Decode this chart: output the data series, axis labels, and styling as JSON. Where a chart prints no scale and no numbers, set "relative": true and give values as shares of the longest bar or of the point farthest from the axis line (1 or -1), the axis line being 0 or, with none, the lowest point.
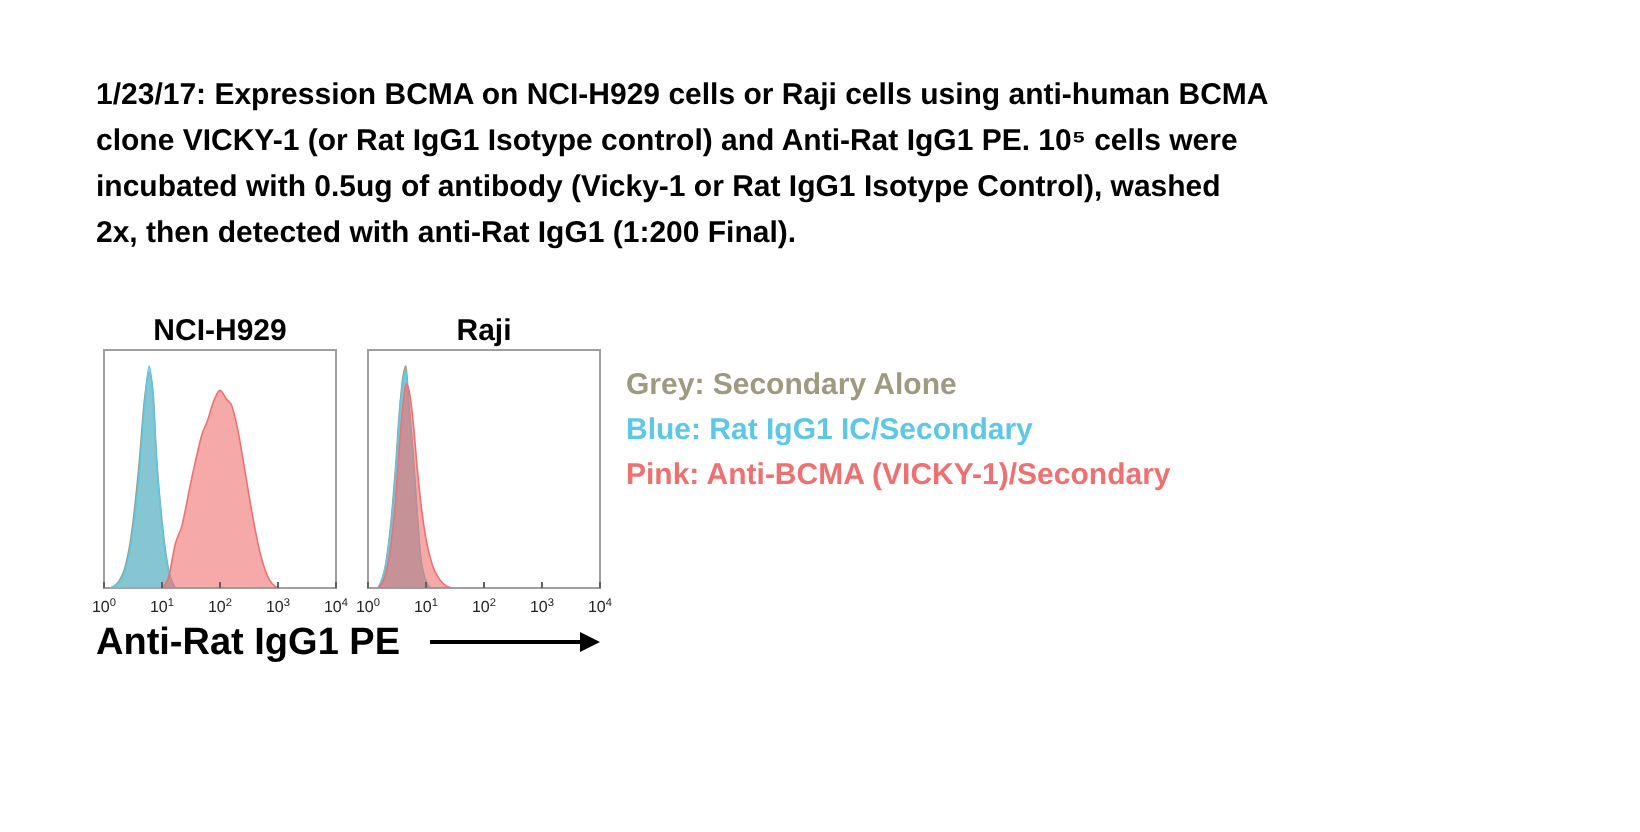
{
  "chart_data": [
    {
      "type": "area",
      "title": "NCI-H929",
      "xlabel": "Anti-Rat IgG1 PE",
      "annotations": [
        "1/23/17: Expression BCMA on NCI-H929 cells or Raji cells using anti-human BCMA clone VICKY-1 (or Rat IgG1 Isotype control) and Anti-Rat IgG1 PE. 10⁵ cells were incubated with 0.5ug of antibody (Vicky-1 or Rat IgG1 Isotype Control), washed 2x, then detected with anti-Rat IgG1 (1:200 Final)."
      ],
      "relative": true,
      "log": "x",
      "xlim": [
        1,
        10000
      ],
      "xticks": [
        {
          "value": 1,
          "label": "10$^{0}$"
        },
        {
          "value": 10,
          "label": "10$^{1}$"
        },
        {
          "value": 100,
          "label": "10$^{2}$"
        },
        {
          "value": 1000,
          "label": "10$^{3}$"
        },
        {
          "value": 10000,
          "label": "10$^{4}$"
        }
      ],
      "series": [
        {
          "color": "#9e9a80",
          "x": [
            1.3,
            2,
            3,
            4,
            5,
            6,
            7,
            8,
            10,
            13,
            17
          ],
          "values": [
            0,
            0.05,
            0.25,
            0.55,
            0.85,
            0.97,
            0.88,
            0.6,
            0.3,
            0.08,
            0
          ]
        },
        {
          "color": "#5bc8e8",
          "x": [
            1.3,
            2,
            3,
            4,
            5,
            6,
            7,
            8,
            10,
            13,
            17
          ],
          "values": [
            0,
            0.04,
            0.22,
            0.5,
            0.82,
            1,
            0.86,
            0.58,
            0.28,
            0.07,
            0
          ]
        },
        {
          "color": "#f07070",
          "x": [
            10,
            13,
            17,
            22,
            30,
            40,
            50,
            60,
            80,
            100,
            130,
            160,
            200,
            260,
            350,
            500,
            700,
            1000
          ],
          "values": [
            0,
            0.05,
            0.2,
            0.28,
            0.45,
            0.6,
            0.7,
            0.75,
            0.85,
            0.89,
            0.85,
            0.82,
            0.72,
            0.55,
            0.35,
            0.15,
            0.04,
            0
          ]
        }
      ]
    },
    {
      "type": "area",
      "title": "Raji",
      "relative": true,
      "log": "x",
      "xlim": [
        1,
        10000
      ],
      "xticks": [
        {
          "value": 1,
          "label": "10$^{0}$"
        },
        {
          "value": 10,
          "label": "10$^{1}$"
        },
        {
          "value": 100,
          "label": "10$^{2}$"
        },
        {
          "value": 1000,
          "label": "10$^{3}$"
        },
        {
          "value": 10000,
          "label": "10$^{4}$"
        }
      ],
      "legend": "right",
      "series": [
        {
          "name": "Grey: Secondary Alone",
          "color": "#9e9a80",
          "x": [
            1.5,
            2,
            2.5,
            3,
            3.5,
            4,
            4.5,
            5,
            6,
            7,
            8,
            10,
            12
          ],
          "values": [
            0,
            0.1,
            0.3,
            0.55,
            0.8,
            0.95,
            1,
            0.85,
            0.6,
            0.35,
            0.15,
            0.03,
            0
          ]
        },
        {
          "name": "Blue: Rat IgG1 IC/Secondary",
          "color": "#5bc8e8",
          "x": [
            1.5,
            2,
            2.5,
            3,
            3.5,
            4,
            4.5,
            5,
            6,
            7,
            8,
            10,
            12
          ],
          "values": [
            0,
            0.1,
            0.28,
            0.52,
            0.78,
            0.93,
            0.98,
            0.82,
            0.58,
            0.33,
            0.14,
            0.03,
            0
          ]
        },
        {
          "name": "Pink: Anti-BCMA (VICKY-1)/Secondary",
          "color": "#f07070",
          "x": [
            1.5,
            2,
            2.5,
            3,
            3.5,
            4,
            4.5,
            5,
            6,
            7,
            8,
            10,
            13,
            17,
            22,
            28
          ],
          "values": [
            0,
            0.06,
            0.2,
            0.4,
            0.65,
            0.82,
            0.92,
            0.9,
            0.75,
            0.55,
            0.4,
            0.22,
            0.1,
            0.04,
            0.01,
            0
          ]
        }
      ]
    }
  ]
}
